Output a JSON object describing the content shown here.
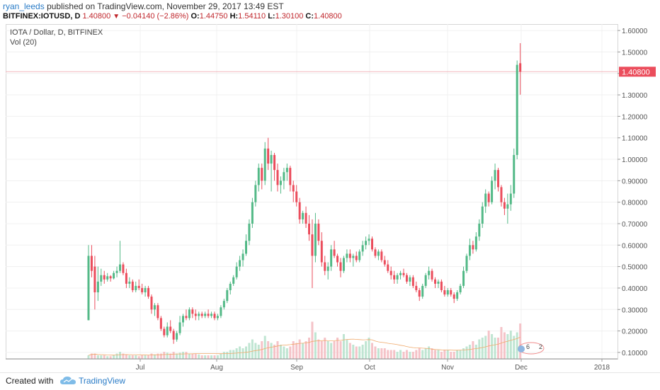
{
  "header": {
    "author": "ryan_leeds",
    "published_text": "published on TradingView.com, November 29, 2017 13:49 EST",
    "symbol_line": "BITFINEX:IOTUSD, D",
    "last": "1.40800",
    "arrow": "▼",
    "change": "−0.04140 (−2.86%)",
    "o_label": "O:",
    "o_val": "1.44750",
    "h_label": "H:",
    "h_val": "1.54110",
    "l_label": "L:",
    "l_val": "1.30100",
    "c_label": "C:",
    "c_val": "1.40800"
  },
  "legend": {
    "title": "IOTA / Dollar, D, BITFINEX",
    "volume": "Vol (20)"
  },
  "price_label": "1.40800",
  "footer": {
    "created": "Created with",
    "brand": "TradingView"
  },
  "chart_data": {
    "type": "candlestick",
    "x_tick_labels": [
      "Jul",
      "Aug",
      "Sep",
      "Oct",
      "Nov",
      "Dec",
      "2018"
    ],
    "y_tick_labels": [
      "1.60000",
      "1.50000",
      "1.40000",
      "1.30000",
      "1.20000",
      "1.10000",
      "1.00000",
      "0.90000",
      "0.80000",
      "0.70000",
      "0.60000",
      "0.50000",
      "0.40000",
      "0.30000",
      "0.20000",
      "0.10000"
    ],
    "ylim": [
      0.07,
      1.63
    ],
    "last_price": 1.408,
    "colors": {
      "up": "#53b987",
      "down": "#eb4d5c",
      "up_vol": "#bfe5d2",
      "down_vol": "#f5c3c8",
      "ma": "#f0a868",
      "price_line": "#f3b7bd"
    },
    "candles": [
      [
        0.25,
        0.6,
        0.25,
        0.55
      ],
      [
        0.55,
        0.6,
        0.45,
        0.48
      ],
      [
        0.5,
        0.55,
        0.3,
        0.38
      ],
      [
        0.38,
        0.5,
        0.34,
        0.43
      ],
      [
        0.43,
        0.49,
        0.41,
        0.46
      ],
      [
        0.46,
        0.48,
        0.42,
        0.44
      ],
      [
        0.44,
        0.47,
        0.43,
        0.455
      ],
      [
        0.455,
        0.46,
        0.43,
        0.445
      ],
      [
        0.445,
        0.48,
        0.44,
        0.47
      ],
      [
        0.47,
        0.5,
        0.45,
        0.48
      ],
      [
        0.48,
        0.62,
        0.47,
        0.51
      ],
      [
        0.51,
        0.52,
        0.46,
        0.47
      ],
      [
        0.47,
        0.49,
        0.4,
        0.42
      ],
      [
        0.42,
        0.45,
        0.4,
        0.43
      ],
      [
        0.43,
        0.44,
        0.38,
        0.39
      ],
      [
        0.39,
        0.43,
        0.38,
        0.41
      ],
      [
        0.41,
        0.44,
        0.39,
        0.4
      ],
      [
        0.4,
        0.42,
        0.37,
        0.38
      ],
      [
        0.38,
        0.41,
        0.36,
        0.4
      ],
      [
        0.4,
        0.41,
        0.35,
        0.36
      ],
      [
        0.36,
        0.37,
        0.28,
        0.3
      ],
      [
        0.3,
        0.33,
        0.27,
        0.32
      ],
      [
        0.32,
        0.33,
        0.25,
        0.26
      ],
      [
        0.26,
        0.27,
        0.2,
        0.21
      ],
      [
        0.21,
        0.22,
        0.17,
        0.18
      ],
      [
        0.18,
        0.24,
        0.17,
        0.22
      ],
      [
        0.22,
        0.25,
        0.19,
        0.2
      ],
      [
        0.2,
        0.21,
        0.14,
        0.16
      ],
      [
        0.16,
        0.2,
        0.15,
        0.19
      ],
      [
        0.19,
        0.27,
        0.18,
        0.24
      ],
      [
        0.24,
        0.28,
        0.22,
        0.27
      ],
      [
        0.27,
        0.3,
        0.25,
        0.26
      ],
      [
        0.26,
        0.31,
        0.25,
        0.3
      ],
      [
        0.3,
        0.31,
        0.26,
        0.28
      ],
      [
        0.28,
        0.3,
        0.25,
        0.27
      ],
      [
        0.27,
        0.29,
        0.25,
        0.28
      ],
      [
        0.28,
        0.29,
        0.26,
        0.27
      ],
      [
        0.27,
        0.29,
        0.26,
        0.28
      ],
      [
        0.28,
        0.3,
        0.26,
        0.27
      ],
      [
        0.27,
        0.29,
        0.26,
        0.28
      ],
      [
        0.28,
        0.29,
        0.25,
        0.26
      ],
      [
        0.26,
        0.28,
        0.25,
        0.27
      ],
      [
        0.27,
        0.32,
        0.26,
        0.31
      ],
      [
        0.31,
        0.35,
        0.3,
        0.34
      ],
      [
        0.34,
        0.4,
        0.33,
        0.39
      ],
      [
        0.39,
        0.43,
        0.37,
        0.42
      ],
      [
        0.42,
        0.46,
        0.41,
        0.45
      ],
      [
        0.45,
        0.52,
        0.44,
        0.5
      ],
      [
        0.5,
        0.55,
        0.48,
        0.53
      ],
      [
        0.53,
        0.58,
        0.5,
        0.56
      ],
      [
        0.56,
        0.65,
        0.55,
        0.62
      ],
      [
        0.62,
        0.72,
        0.6,
        0.7
      ],
      [
        0.7,
        0.82,
        0.68,
        0.8
      ],
      [
        0.8,
        0.9,
        0.78,
        0.88
      ],
      [
        0.88,
        0.98,
        0.85,
        0.96
      ],
      [
        0.96,
        0.98,
        0.86,
        0.9
      ],
      [
        0.9,
        1.08,
        0.88,
        1.05
      ],
      [
        1.05,
        1.1,
        0.95,
        0.98
      ],
      [
        0.98,
        1.04,
        0.85,
        1.02
      ],
      [
        1.02,
        1.03,
        0.9,
        0.95
      ],
      [
        0.95,
        0.98,
        0.85,
        0.88
      ],
      [
        0.88,
        0.92,
        0.84,
        0.9
      ],
      [
        0.9,
        0.96,
        0.86,
        0.94
      ],
      [
        0.94,
        0.98,
        0.9,
        0.96
      ],
      [
        0.96,
        0.97,
        0.85,
        0.88
      ],
      [
        0.88,
        0.9,
        0.8,
        0.85
      ],
      [
        0.85,
        0.88,
        0.78,
        0.8
      ],
      [
        0.8,
        0.82,
        0.7,
        0.72
      ],
      [
        0.72,
        0.76,
        0.7,
        0.75
      ],
      [
        0.75,
        0.78,
        0.68,
        0.7
      ],
      [
        0.7,
        0.74,
        0.62,
        0.65
      ],
      [
        0.65,
        0.72,
        0.4,
        0.55
      ],
      [
        0.55,
        0.75,
        0.52,
        0.7
      ],
      [
        0.7,
        0.72,
        0.6,
        0.62
      ],
      [
        0.62,
        0.66,
        0.5,
        0.52
      ],
      [
        0.52,
        0.55,
        0.46,
        0.48
      ],
      [
        0.48,
        0.52,
        0.44,
        0.5
      ],
      [
        0.5,
        0.6,
        0.48,
        0.58
      ],
      [
        0.58,
        0.62,
        0.54,
        0.55
      ],
      [
        0.55,
        0.56,
        0.5,
        0.52
      ],
      [
        0.52,
        0.54,
        0.45,
        0.48
      ],
      [
        0.48,
        0.55,
        0.47,
        0.54
      ],
      [
        0.54,
        0.58,
        0.52,
        0.56
      ],
      [
        0.56,
        0.58,
        0.52,
        0.54
      ],
      [
        0.54,
        0.56,
        0.5,
        0.55
      ],
      [
        0.55,
        0.57,
        0.52,
        0.53
      ],
      [
        0.53,
        0.58,
        0.52,
        0.57
      ],
      [
        0.57,
        0.62,
        0.55,
        0.6
      ],
      [
        0.6,
        0.64,
        0.58,
        0.62
      ],
      [
        0.62,
        0.65,
        0.6,
        0.63
      ],
      [
        0.63,
        0.64,
        0.57,
        0.58
      ],
      [
        0.58,
        0.59,
        0.54,
        0.55
      ],
      [
        0.55,
        0.58,
        0.53,
        0.57
      ],
      [
        0.57,
        0.58,
        0.52,
        0.53
      ],
      [
        0.53,
        0.55,
        0.5,
        0.51
      ],
      [
        0.51,
        0.53,
        0.47,
        0.48
      ],
      [
        0.48,
        0.5,
        0.44,
        0.46
      ],
      [
        0.46,
        0.48,
        0.42,
        0.44
      ],
      [
        0.44,
        0.47,
        0.42,
        0.46
      ],
      [
        0.46,
        0.48,
        0.44,
        0.47
      ],
      [
        0.47,
        0.49,
        0.45,
        0.46
      ],
      [
        0.46,
        0.47,
        0.42,
        0.43
      ],
      [
        0.43,
        0.46,
        0.41,
        0.45
      ],
      [
        0.45,
        0.46,
        0.4,
        0.41
      ],
      [
        0.41,
        0.43,
        0.38,
        0.39
      ],
      [
        0.39,
        0.4,
        0.34,
        0.36
      ],
      [
        0.36,
        0.42,
        0.35,
        0.41
      ],
      [
        0.41,
        0.47,
        0.4,
        0.46
      ],
      [
        0.46,
        0.5,
        0.44,
        0.48
      ],
      [
        0.48,
        0.49,
        0.43,
        0.44
      ],
      [
        0.44,
        0.45,
        0.4,
        0.42
      ],
      [
        0.42,
        0.44,
        0.4,
        0.43
      ],
      [
        0.43,
        0.44,
        0.38,
        0.39
      ],
      [
        0.39,
        0.41,
        0.36,
        0.37
      ],
      [
        0.37,
        0.4,
        0.36,
        0.39
      ],
      [
        0.39,
        0.4,
        0.36,
        0.37
      ],
      [
        0.37,
        0.38,
        0.33,
        0.35
      ],
      [
        0.35,
        0.39,
        0.34,
        0.38
      ],
      [
        0.38,
        0.42,
        0.37,
        0.41
      ],
      [
        0.41,
        0.5,
        0.4,
        0.48
      ],
      [
        0.48,
        0.56,
        0.47,
        0.55
      ],
      [
        0.55,
        0.63,
        0.53,
        0.6
      ],
      [
        0.6,
        0.62,
        0.56,
        0.58
      ],
      [
        0.58,
        0.66,
        0.57,
        0.64
      ],
      [
        0.64,
        0.72,
        0.62,
        0.7
      ],
      [
        0.7,
        0.8,
        0.68,
        0.78
      ],
      [
        0.78,
        0.86,
        0.75,
        0.84
      ],
      [
        0.84,
        0.85,
        0.78,
        0.8
      ],
      [
        0.8,
        0.92,
        0.79,
        0.9
      ],
      [
        0.9,
        0.98,
        0.86,
        0.95
      ],
      [
        0.95,
        0.96,
        0.85,
        0.87
      ],
      [
        0.87,
        0.88,
        0.78,
        0.8
      ],
      [
        0.8,
        0.82,
        0.74,
        0.77
      ],
      [
        0.77,
        0.84,
        0.7,
        0.79
      ],
      [
        0.79,
        0.88,
        0.76,
        0.84
      ],
      [
        0.84,
        1.05,
        0.82,
        1.02
      ],
      [
        1.02,
        1.46,
        1.0,
        1.44
      ],
      [
        1.4475,
        1.5411,
        1.301,
        1.408
      ]
    ],
    "volumes": [
      0.02,
      0.03,
      0.03,
      0.02,
      0.02,
      0.02,
      0.015,
      0.015,
      0.02,
      0.03,
      0.04,
      0.03,
      0.025,
      0.02,
      0.02,
      0.02,
      0.015,
      0.02,
      0.02,
      0.02,
      0.03,
      0.025,
      0.03,
      0.03,
      0.04,
      0.035,
      0.03,
      0.04,
      0.03,
      0.035,
      0.04,
      0.04,
      0.03,
      0.03,
      0.03,
      0.025,
      0.02,
      0.02,
      0.02,
      0.02,
      0.02,
      0.02,
      0.03,
      0.04,
      0.04,
      0.05,
      0.05,
      0.06,
      0.07,
      0.06,
      0.07,
      0.09,
      0.11,
      0.09,
      0.08,
      0.1,
      0.13,
      0.1,
      0.09,
      0.08,
      0.1,
      0.08,
      0.07,
      0.06,
      0.07,
      0.1,
      0.09,
      0.11,
      0.09,
      0.1,
      0.12,
      0.21,
      0.15,
      0.11,
      0.1,
      0.12,
      0.1,
      0.09,
      0.1,
      0.12,
      0.1,
      0.14,
      0.11,
      0.09,
      0.08,
      0.07,
      0.07,
      0.08,
      0.1,
      0.12,
      0.09,
      0.07,
      0.06,
      0.06,
      0.06,
      0.05,
      0.05,
      0.05,
      0.04,
      0.05,
      0.04,
      0.05,
      0.04,
      0.04,
      0.05,
      0.06,
      0.05,
      0.06,
      0.07,
      0.06,
      0.05,
      0.05,
      0.04,
      0.05,
      0.05,
      0.04,
      0.04,
      0.05,
      0.05,
      0.06,
      0.07,
      0.08,
      0.1,
      0.08,
      0.11,
      0.12,
      0.13,
      0.16,
      0.14,
      0.12,
      0.12,
      0.18,
      0.15,
      0.14,
      0.16,
      0.13,
      0.15,
      0.2,
      0.36,
      0.28
    ]
  }
}
